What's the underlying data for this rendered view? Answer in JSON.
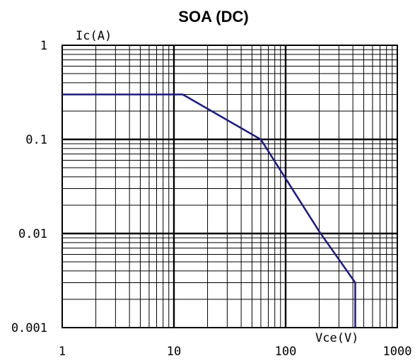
{
  "chart_data": {
    "type": "line",
    "title": "SOA (DC)",
    "xlabel": "Vce(V)",
    "ylabel": "Ic(A)",
    "x_scale": "log",
    "y_scale": "log",
    "xlim": [
      1,
      1000
    ],
    "ylim": [
      0.001,
      1
    ],
    "x_ticks": [
      "1",
      "10",
      "100",
      "1000"
    ],
    "y_ticks": [
      "1",
      "0.1",
      "0.01",
      "0.001"
    ],
    "x_tick_values": [
      1,
      10,
      100,
      1000
    ],
    "y_tick_values": [
      1,
      0.1,
      0.01,
      0.001
    ],
    "grid": true,
    "series": [
      {
        "color": "#1a1a80",
        "x": [
          1,
          12,
          60,
          200,
          420,
          420
        ],
        "y": [
          0.3,
          0.3,
          0.1,
          0.0105,
          0.003,
          0.001
        ]
      }
    ]
  }
}
